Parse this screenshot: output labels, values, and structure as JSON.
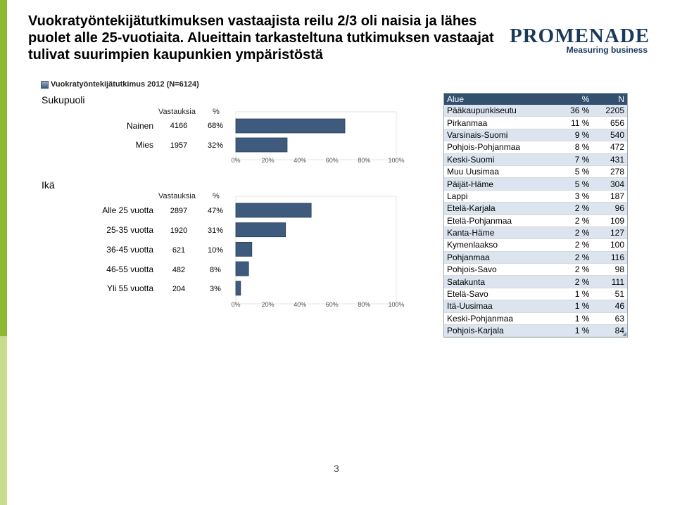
{
  "title": "Vuokratyöntekijätutkimuksen vastaajista reilu 2/3 oli naisia ja lähes puolet alle 25-vuotiaita. Alueittain tarkasteltuna tutkimuksen vastaajat tulivat suurimpien kaupunkien ympäristöstä",
  "logo": {
    "main": "PROMENADE",
    "sub": "Measuring business"
  },
  "subtitle": "Vuokratyöntekijätutkimus 2012 (N=6124)",
  "colors": {
    "accent_green": "#8cb832",
    "bar_fill": "#3e5a7d",
    "table_header": "#33506f",
    "row_band": "#dbe4ef"
  },
  "gender": {
    "section_label": "Sukupuoli",
    "col_count": "Vastauksia",
    "col_pct": "%",
    "rows": [
      {
        "label": "Nainen",
        "count": "4166",
        "pct": "68%"
      },
      {
        "label": "Mies",
        "count": "1957",
        "pct": "32%"
      }
    ]
  },
  "age": {
    "section_label": "Ikä",
    "col_count": "Vastauksia",
    "col_pct": "%",
    "rows": [
      {
        "label": "Alle 25 vuotta",
        "count": "2897",
        "pct": "47%"
      },
      {
        "label": "25-35 vuotta",
        "count": "1920",
        "pct": "31%"
      },
      {
        "label": "36-45 vuotta",
        "count": "621",
        "pct": "10%"
      },
      {
        "label": "46-55 vuotta",
        "count": "482",
        "pct": "8%"
      },
      {
        "label": "Yli 55 vuotta",
        "count": "204",
        "pct": "3%"
      }
    ]
  },
  "chart_data": [
    {
      "type": "bar",
      "orientation": "horizontal",
      "categories": [
        "Nainen",
        "Mies"
      ],
      "values": [
        68,
        32
      ],
      "xlim": [
        0,
        100
      ],
      "xticks": [
        "0%",
        "20%",
        "40%",
        "60%",
        "80%",
        "100%"
      ]
    },
    {
      "type": "bar",
      "orientation": "horizontal",
      "categories": [
        "Alle 25 vuotta",
        "25-35 vuotta",
        "36-45 vuotta",
        "46-55 vuotta",
        "Yli 55 vuotta"
      ],
      "values": [
        47,
        31,
        10,
        8,
        3
      ],
      "xlim": [
        0,
        100
      ],
      "xticks": [
        "0%",
        "20%",
        "40%",
        "60%",
        "80%",
        "100%"
      ]
    }
  ],
  "region_table": {
    "headers": [
      "Alue",
      "%",
      "N"
    ],
    "rows": [
      [
        "Pääkaupunkiseutu",
        "36 %",
        "2205"
      ],
      [
        "Pirkanmaa",
        "11 %",
        "656"
      ],
      [
        "Varsinais-Suomi",
        "9 %",
        "540"
      ],
      [
        "Pohjois-Pohjanmaa",
        "8 %",
        "472"
      ],
      [
        "Keski-Suomi",
        "7 %",
        "431"
      ],
      [
        "Muu Uusimaa",
        "5 %",
        "278"
      ],
      [
        "Päijät-Häme",
        "5 %",
        "304"
      ],
      [
        "Lappi",
        "3 %",
        "187"
      ],
      [
        "Etelä-Karjala",
        "2 %",
        "96"
      ],
      [
        "Etelä-Pohjanmaa",
        "2 %",
        "109"
      ],
      [
        "Kanta-Häme",
        "2 %",
        "127"
      ],
      [
        "Kymenlaakso",
        "2 %",
        "100"
      ],
      [
        "Pohjanmaa",
        "2 %",
        "116"
      ],
      [
        "Pohjois-Savo",
        "2 %",
        "98"
      ],
      [
        "Satakunta",
        "2 %",
        "111"
      ],
      [
        "Etelä-Savo",
        "1 %",
        "51"
      ],
      [
        "Itä-Uusimaa",
        "1 %",
        "46"
      ],
      [
        "Keski-Pohjanmaa",
        "1 %",
        "63"
      ],
      [
        "Pohjois-Karjala",
        "1 %",
        "84"
      ]
    ]
  },
  "page_number": "3"
}
